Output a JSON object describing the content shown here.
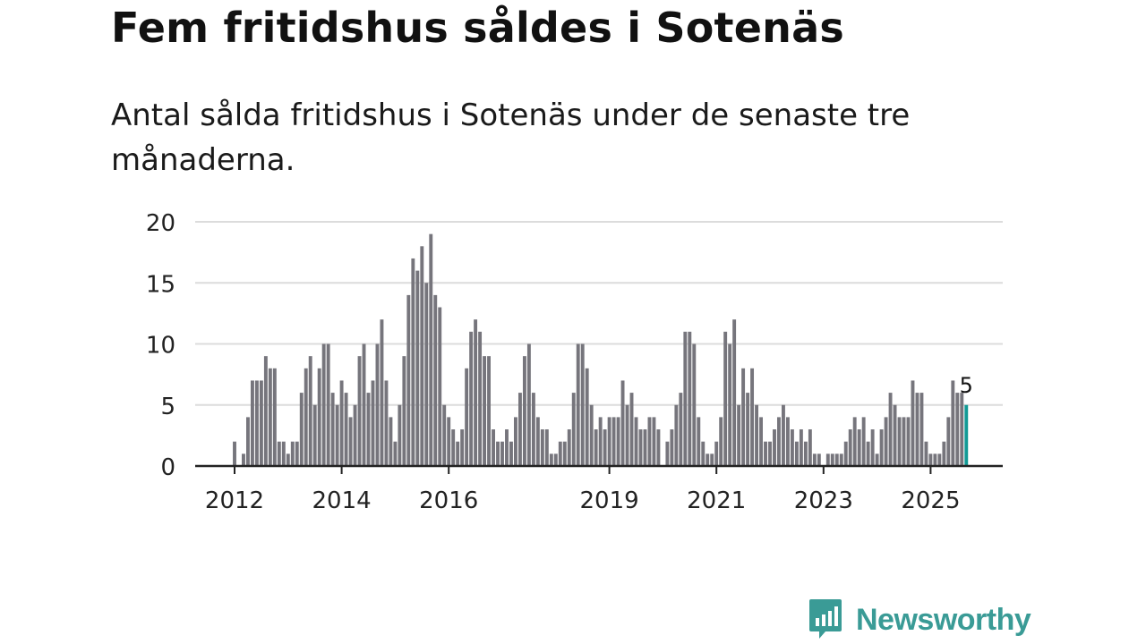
{
  "header": {
    "title": "Fem fritidshus såldes i Sotenäs",
    "subtitle": "Antal sålda fritidshus i Sotenäs under de senaste tre månaderna."
  },
  "branding": {
    "logo_text": "Newsworthy",
    "logo_icon": "bar-chart-speech-bubble-icon",
    "logo_color": "#3a9b96"
  },
  "colors": {
    "bar": "#76757c",
    "highlight": "#119a95",
    "grid": "#dcdcdc",
    "axis": "#222222",
    "text": "#222222"
  },
  "chart_data": {
    "type": "bar",
    "title": "Fem fritidshus såldes i Sotenäs",
    "subtitle": "Antal sålda fritidshus i Sotenäs under de senaste tre månaderna.",
    "xlabel": "",
    "ylabel": "",
    "ylim": [
      0,
      20
    ],
    "yticks": [
      0,
      5,
      10,
      15,
      20
    ],
    "grid": true,
    "start": "2012-01",
    "interval": "month",
    "x_tick_labels": [
      {
        "label": "2012",
        "index": 0
      },
      {
        "label": "2014",
        "index": 24
      },
      {
        "label": "2016",
        "index": 48
      },
      {
        "label": "2019",
        "index": 84
      },
      {
        "label": "2021",
        "index": 108
      },
      {
        "label": "2023",
        "index": 132
      },
      {
        "label": "2025",
        "index": 156
      }
    ],
    "values": [
      2,
      0,
      1,
      4,
      7,
      7,
      7,
      9,
      8,
      8,
      2,
      2,
      1,
      2,
      2,
      6,
      8,
      9,
      5,
      8,
      10,
      10,
      6,
      5,
      7,
      6,
      4,
      5,
      9,
      10,
      6,
      7,
      10,
      12,
      7,
      4,
      2,
      5,
      9,
      14,
      17,
      16,
      18,
      15,
      19,
      14,
      13,
      5,
      4,
      3,
      2,
      3,
      8,
      11,
      12,
      11,
      9,
      9,
      3,
      2,
      2,
      3,
      2,
      4,
      6,
      9,
      10,
      6,
      4,
      3,
      3,
      1,
      1,
      2,
      2,
      3,
      6,
      10,
      10,
      8,
      5,
      3,
      4,
      3,
      4,
      4,
      4,
      7,
      5,
      6,
      4,
      3,
      3,
      4,
      4,
      3,
      0,
      2,
      3,
      5,
      6,
      11,
      11,
      10,
      4,
      2,
      1,
      1,
      2,
      4,
      11,
      10,
      12,
      5,
      8,
      6,
      8,
      5,
      4,
      2,
      2,
      3,
      4,
      5,
      4,
      3,
      2,
      3,
      2,
      3,
      1,
      1,
      0,
      1,
      1,
      1,
      1,
      2,
      3,
      4,
      3,
      4,
      2,
      3,
      1,
      3,
      4,
      6,
      5,
      4,
      4,
      4,
      7,
      6,
      6,
      2,
      1,
      1,
      1,
      2,
      4,
      7,
      6,
      6,
      5
    ],
    "highlight_index": 164,
    "highlight_label": "5"
  }
}
